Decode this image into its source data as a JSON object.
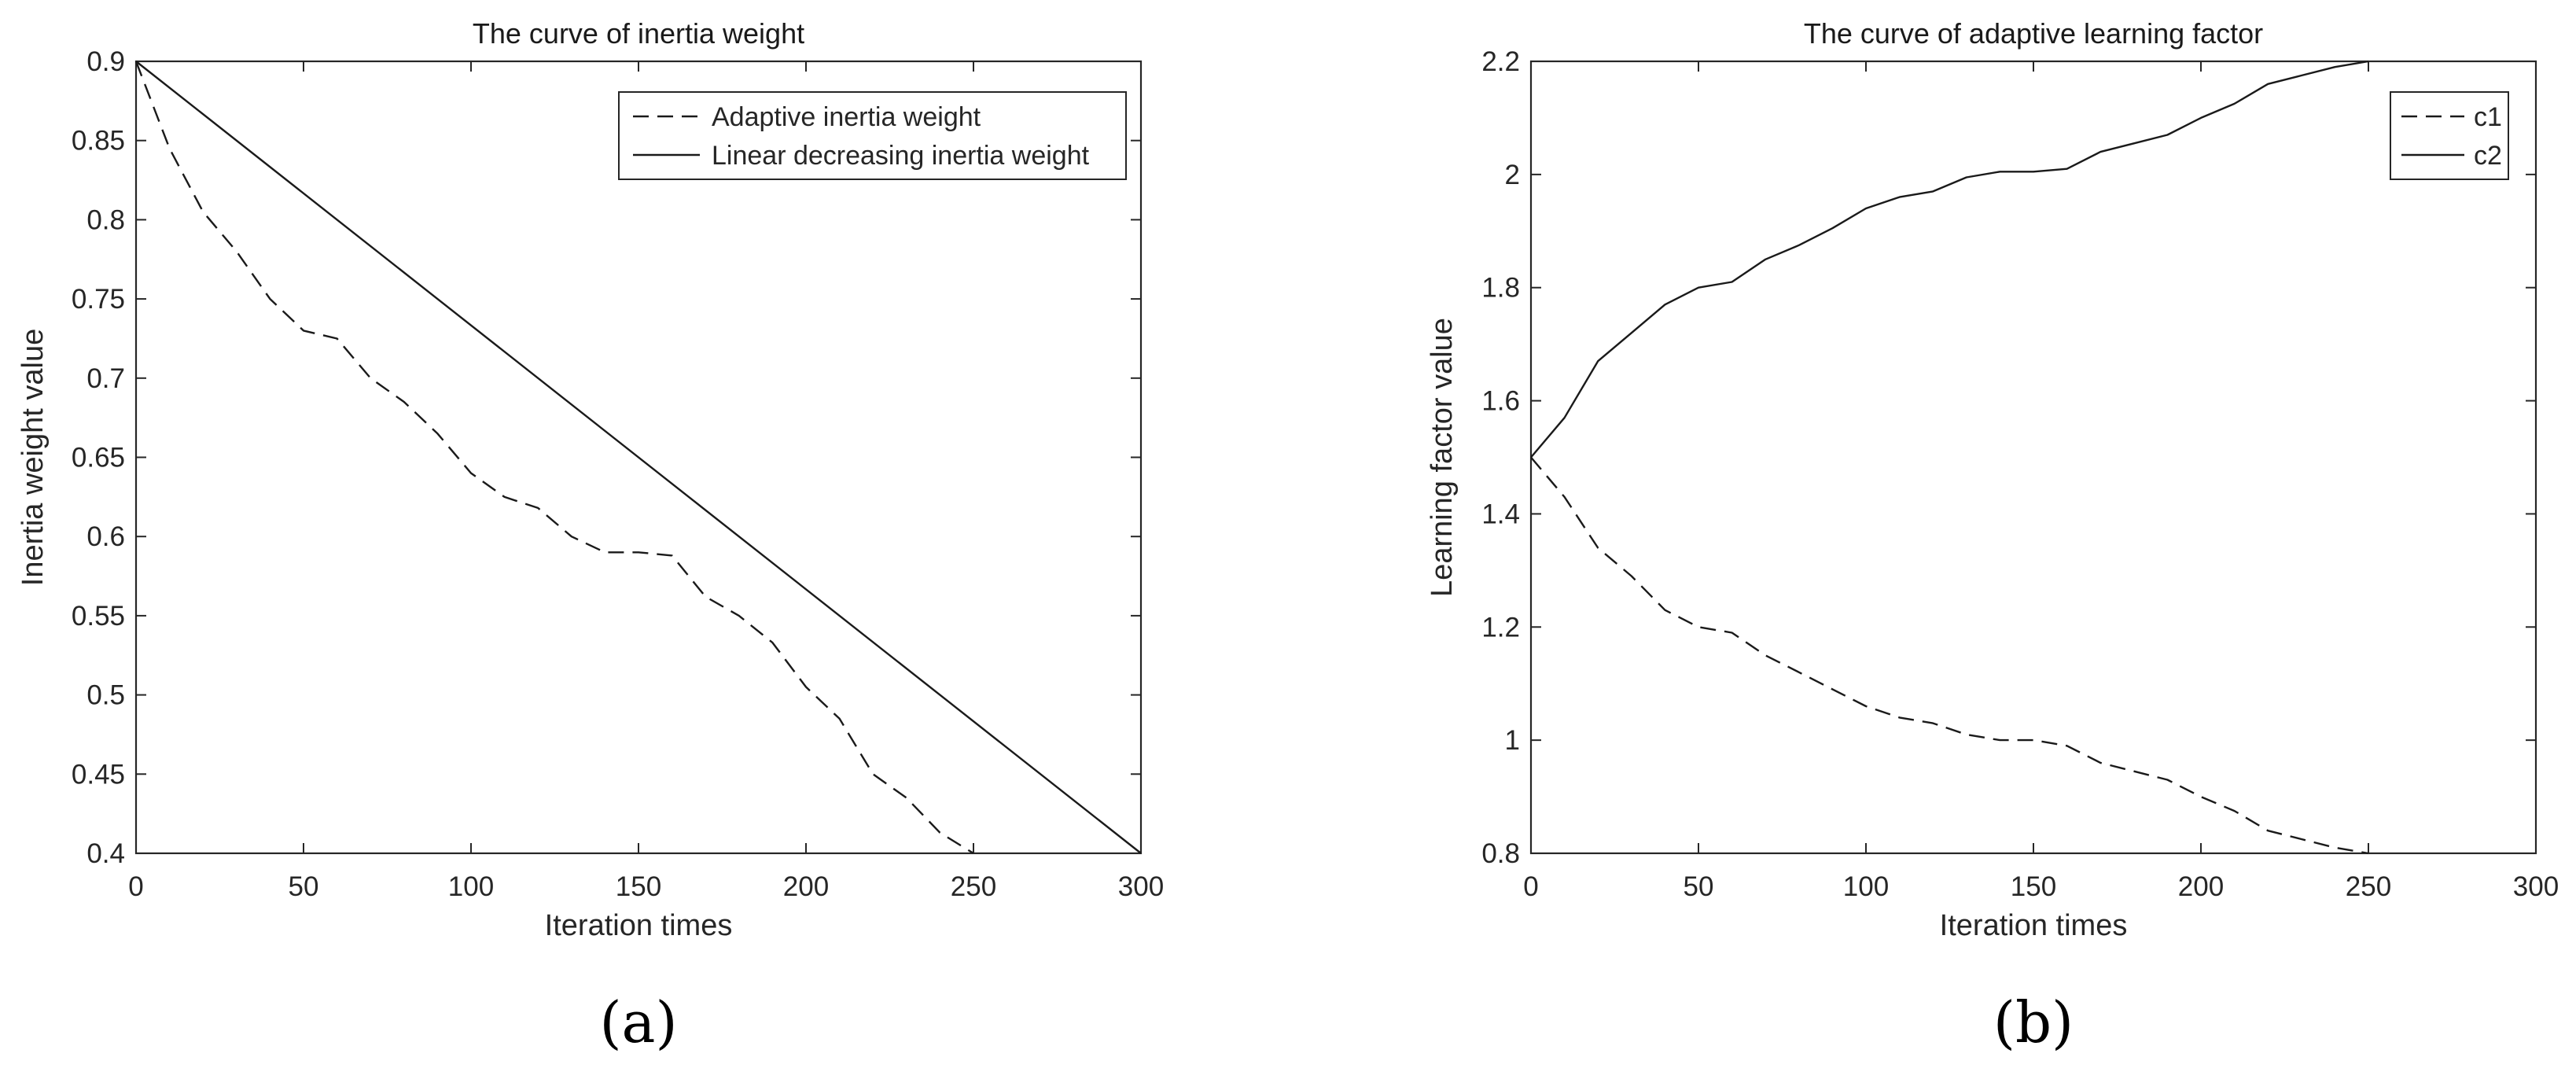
{
  "chart_data": [
    {
      "type": "line",
      "title": "The curve of inertia weight",
      "xlabel": "Iteration times",
      "ylabel": "Inertia weight value",
      "caption": "(a)",
      "xlim": [
        0,
        300
      ],
      "ylim": [
        0.4,
        0.9
      ],
      "xticks": [
        "0",
        "50",
        "100",
        "150",
        "200",
        "250",
        "300"
      ],
      "yticks": [
        "0.4",
        "0.45",
        "0.5",
        "0.55",
        "0.6",
        "0.65",
        "0.7",
        "0.75",
        "0.8",
        "0.85",
        "0.9"
      ],
      "legend_position": "top-right",
      "series": [
        {
          "name": "Adaptive inertia weight",
          "style": "dashed",
          "x": [
            0,
            10,
            20,
            30,
            40,
            50,
            60,
            70,
            80,
            90,
            100,
            110,
            120,
            130,
            140,
            150,
            160,
            170,
            180,
            190,
            200,
            210,
            220,
            230,
            240,
            250
          ],
          "y": [
            0.9,
            0.845,
            0.805,
            0.78,
            0.75,
            0.73,
            0.725,
            0.7,
            0.685,
            0.665,
            0.64,
            0.625,
            0.618,
            0.6,
            0.59,
            0.59,
            0.588,
            0.562,
            0.55,
            0.533,
            0.505,
            0.485,
            0.45,
            0.435,
            0.413,
            0.4
          ]
        },
        {
          "name": "Linear decreasing inertia weight",
          "style": "solid",
          "x": [
            0,
            300
          ],
          "y": [
            0.9,
            0.4
          ]
        }
      ]
    },
    {
      "type": "line",
      "title": "The curve of adaptive learning factor",
      "xlabel": "Iteration times",
      "ylabel": "Learning factor value",
      "caption": "(b)",
      "xlim": [
        0,
        300
      ],
      "ylim": [
        0.8,
        2.2
      ],
      "xticks": [
        "0",
        "50",
        "100",
        "150",
        "200",
        "250",
        "300"
      ],
      "yticks": [
        "0.8",
        "1",
        "1.2",
        "1.4",
        "1.6",
        "1.8",
        "2",
        "2.2"
      ],
      "legend_position": "top-right",
      "series": [
        {
          "name": "c1",
          "style": "dashed",
          "x": [
            0,
            10,
            20,
            30,
            40,
            50,
            60,
            70,
            80,
            90,
            100,
            110,
            120,
            130,
            140,
            150,
            160,
            170,
            180,
            190,
            200,
            210,
            220,
            230,
            240,
            250
          ],
          "y": [
            1.5,
            1.43,
            1.34,
            1.29,
            1.23,
            1.2,
            1.19,
            1.15,
            1.12,
            1.09,
            1.06,
            1.04,
            1.03,
            1.01,
            1.0,
            1.0,
            0.99,
            0.96,
            0.945,
            0.93,
            0.9,
            0.875,
            0.84,
            0.825,
            0.81,
            0.8
          ]
        },
        {
          "name": "c2",
          "style": "solid",
          "x": [
            0,
            10,
            20,
            30,
            40,
            50,
            60,
            70,
            80,
            90,
            100,
            110,
            120,
            130,
            140,
            150,
            160,
            170,
            180,
            190,
            200,
            210,
            220,
            230,
            240,
            250
          ],
          "y": [
            1.5,
            1.57,
            1.67,
            1.72,
            1.77,
            1.8,
            1.81,
            1.85,
            1.875,
            1.905,
            1.94,
            1.96,
            1.97,
            1.995,
            2.005,
            2.005,
            2.01,
            2.04,
            2.055,
            2.07,
            2.1,
            2.125,
            2.16,
            2.175,
            2.19,
            2.2
          ]
        }
      ]
    }
  ]
}
